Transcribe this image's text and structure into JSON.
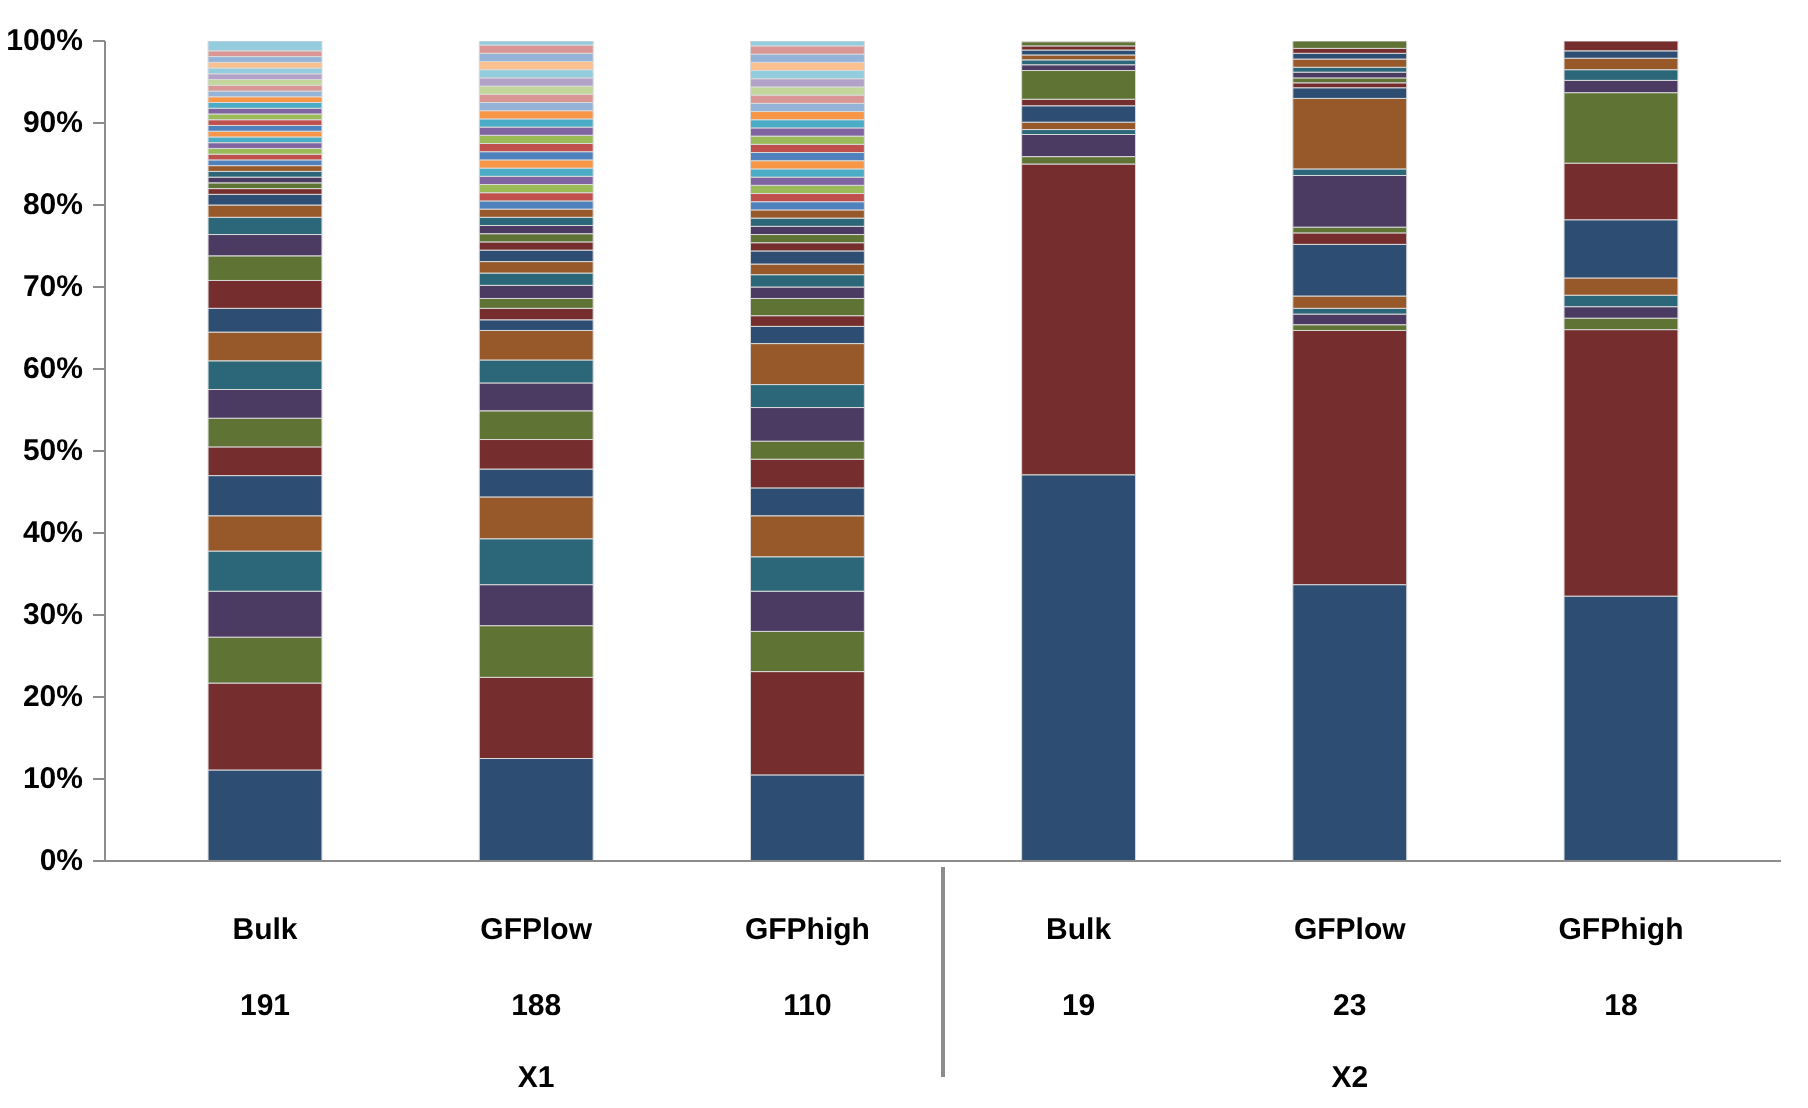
{
  "chart_data": {
    "type": "bar",
    "stacked": true,
    "grid": false,
    "categories": [
      [
        "Bulk",
        "191"
      ],
      [
        "GFPlow",
        "188"
      ],
      [
        "GFPhigh",
        "110"
      ],
      [
        "Bulk",
        "19"
      ],
      [
        "GFPlow",
        "23"
      ],
      [
        "GFPhigh",
        "18"
      ]
    ],
    "annotations": [
      "X1",
      "X2"
    ],
    "ylim": [
      0,
      100
    ],
    "yticks": [
      {
        "value": 0,
        "label": "0%"
      },
      {
        "value": 10,
        "label": "10%"
      },
      {
        "value": 20,
        "label": "20%"
      },
      {
        "value": 30,
        "label": "30%"
      },
      {
        "value": 40,
        "label": "40%"
      },
      {
        "value": 50,
        "label": "50%"
      },
      {
        "value": 60,
        "label": "60%"
      },
      {
        "value": 70,
        "label": "70%"
      },
      {
        "value": 80,
        "label": "80%"
      },
      {
        "value": 90,
        "label": "90%"
      },
      {
        "value": 100,
        "label": "100%"
      }
    ],
    "series": [
      {
        "color": "#2d4e72",
        "values": [
          11.1,
          12.5,
          10.5,
          47.1,
          33.7,
          32.3
        ]
      },
      {
        "color": "#762d2d",
        "values": [
          10.6,
          9.9,
          12.6,
          37.9,
          31.0,
          32.5
        ]
      },
      {
        "color": "#5f7334",
        "values": [
          5.6,
          6.3,
          4.9,
          0.9,
          0.7,
          1.4
        ]
      },
      {
        "color": "#4b3a61",
        "values": [
          5.6,
          5.0,
          4.9,
          2.7,
          1.3,
          1.4
        ]
      },
      {
        "color": "#2b6778",
        "values": [
          4.9,
          5.6,
          4.2,
          0.6,
          0.7,
          1.4
        ]
      },
      {
        "color": "#98592a",
        "values": [
          4.3,
          5.1,
          5.0,
          0.9,
          1.5,
          2.1
        ]
      },
      {
        "color": "#2d4e72",
        "values": [
          4.9,
          3.4,
          3.4,
          2.0,
          6.3,
          7.1
        ]
      },
      {
        "color": "#762d2d",
        "values": [
          3.5,
          3.6,
          3.5,
          0.8,
          1.4,
          6.9
        ]
      },
      {
        "color": "#5f7334",
        "values": [
          3.5,
          3.5,
          2.2,
          3.5,
          0.7,
          8.6
        ]
      },
      {
        "color": "#4b3a61",
        "values": [
          3.5,
          3.4,
          4.1,
          0.7,
          6.3,
          1.5
        ]
      },
      {
        "color": "#2b6778",
        "values": [
          3.5,
          2.8,
          2.8,
          0.6,
          0.8,
          1.3
        ]
      },
      {
        "color": "#98592a",
        "values": [
          3.5,
          3.6,
          5.0,
          0.6,
          8.6,
          1.4
        ]
      },
      {
        "color": "#2d4e72",
        "values": [
          2.9,
          1.3,
          2.1,
          0.6,
          1.3,
          0.9
        ]
      },
      {
        "color": "#762d2d",
        "values": [
          3.4,
          1.4,
          1.3,
          0.5,
          0.6,
          1.2
        ]
      },
      {
        "color": "#5f7334",
        "values": [
          3.0,
          1.2,
          2.1,
          0.5,
          0.6,
          null
        ]
      },
      {
        "color": "#4b3a61",
        "values": [
          2.6,
          1.6,
          1.4,
          null,
          0.7,
          null
        ]
      },
      {
        "color": "#2b6778",
        "values": [
          2.1,
          1.5,
          1.5,
          null,
          0.6,
          null
        ]
      },
      {
        "color": "#98592a",
        "values": [
          1.5,
          1.4,
          1.3,
          null,
          1.0,
          null
        ]
      },
      {
        "color": "#2d4e72",
        "values": [
          1.3,
          1.4,
          1.6,
          null,
          0.7,
          null
        ]
      },
      {
        "color": "#762d2d",
        "values": [
          0.7,
          1.0,
          1.0,
          null,
          0.6,
          null
        ]
      },
      {
        "color": "#5f7334",
        "values": [
          0.7,
          1.0,
          1.0,
          null,
          0.9,
          null
        ]
      },
      {
        "color": "#4b3a61",
        "values": [
          0.7,
          1.0,
          1.0,
          null,
          null,
          null
        ]
      },
      {
        "color": "#2b6778",
        "values": [
          0.7,
          1.0,
          1.0,
          null,
          null,
          null
        ]
      },
      {
        "color": "#98592a",
        "values": [
          0.7,
          1.0,
          1.0,
          null,
          null,
          null
        ]
      },
      {
        "color": "#4f81bd",
        "values": [
          0.7,
          1.0,
          1.0,
          null,
          null,
          null
        ]
      },
      {
        "color": "#c0504d",
        "values": [
          0.7,
          1.0,
          1.0,
          null,
          null,
          null
        ]
      },
      {
        "color": "#9bbb59",
        "values": [
          0.7,
          1.0,
          1.0,
          null,
          null,
          null
        ]
      },
      {
        "color": "#8064a2",
        "values": [
          0.7,
          1.0,
          1.0,
          null,
          null,
          null
        ]
      },
      {
        "color": "#4bacc6",
        "values": [
          0.7,
          1.0,
          1.0,
          null,
          null,
          null
        ]
      },
      {
        "color": "#f79646",
        "values": [
          0.7,
          1.0,
          1.0,
          null,
          null,
          null
        ]
      },
      {
        "color": "#4f81bd",
        "values": [
          0.7,
          1.0,
          1.0,
          null,
          null,
          null
        ]
      },
      {
        "color": "#c0504d",
        "values": [
          0.7,
          1.0,
          1.0,
          null,
          null,
          null
        ]
      },
      {
        "color": "#9bbb59",
        "values": [
          0.7,
          1.0,
          1.0,
          null,
          null,
          null
        ]
      },
      {
        "color": "#8064a2",
        "values": [
          0.7,
          1.0,
          1.0,
          null,
          null,
          null
        ]
      },
      {
        "color": "#4bacc6",
        "values": [
          0.7,
          1.0,
          1.0,
          null,
          null,
          null
        ]
      },
      {
        "color": "#f79646",
        "values": [
          0.7,
          1.0,
          1.0,
          null,
          null,
          null
        ]
      },
      {
        "color": "#95b3d7",
        "values": [
          0.7,
          1.0,
          1.0,
          null,
          null,
          null
        ]
      },
      {
        "color": "#d99694",
        "values": [
          0.7,
          1.0,
          1.0,
          null,
          null,
          null
        ]
      },
      {
        "color": "#c3d69b",
        "values": [
          0.7,
          1.0,
          1.0,
          null,
          null,
          null
        ]
      },
      {
        "color": "#b3a2c7",
        "values": [
          0.7,
          1.0,
          1.0,
          null,
          null,
          null
        ]
      },
      {
        "color": "#93cddd",
        "values": [
          0.7,
          1.0,
          1.0,
          null,
          null,
          null
        ]
      },
      {
        "color": "#fac090",
        "values": [
          0.7,
          1.0,
          1.0,
          null,
          null,
          null
        ]
      },
      {
        "color": "#95b3d7",
        "values": [
          0.7,
          1.0,
          1.0,
          null,
          null,
          null
        ]
      },
      {
        "color": "#d99694",
        "values": [
          0.7,
          1.0,
          1.0,
          null,
          null,
          null
        ]
      },
      {
        "color": "#93cddd",
        "values": [
          1.2,
          0.5,
          0.6,
          null,
          null,
          null
        ]
      }
    ]
  }
}
